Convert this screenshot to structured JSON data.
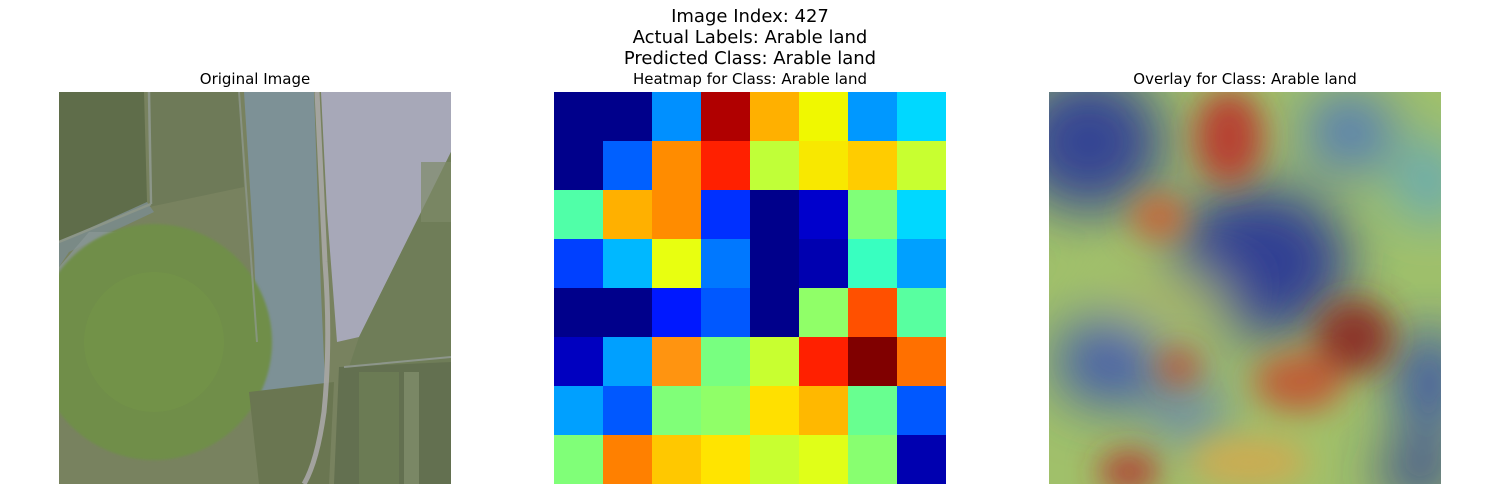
{
  "suptitle": {
    "line1": "Image Index: 427",
    "line2": "Actual Labels: Arable land",
    "line3": "Predicted Class: Arable land"
  },
  "panels": {
    "original_title": "Original Image",
    "heatmap_title": "Heatmap for Class: Arable land",
    "overlay_title": "Overlay for Class: Arable land"
  },
  "heatmap": {
    "colormap": "jet",
    "rows": 8,
    "cols": 8,
    "cell_colors": [
      [
        "#00008b",
        "#00008b",
        "#0090ff",
        "#b00000",
        "#ffb000",
        "#f0f800",
        "#0098ff",
        "#00d8ff"
      ],
      [
        "#00008b",
        "#0060ff",
        "#ff8c00",
        "#ff2000",
        "#c0ff38",
        "#f8e800",
        "#ffcc00",
        "#c8ff30"
      ],
      [
        "#50ffa8",
        "#ffb000",
        "#ff8c00",
        "#0030ff",
        "#00008b",
        "#0000cc",
        "#80ff78",
        "#00d8ff"
      ],
      [
        "#0040ff",
        "#00b8ff",
        "#e8ff10",
        "#0078ff",
        "#00008b",
        "#0000b0",
        "#38ffc0",
        "#00a0ff"
      ],
      [
        "#00008b",
        "#00008b",
        "#0018ff",
        "#0058ff",
        "#00008b",
        "#90ff68",
        "#ff5000",
        "#58ffa0"
      ],
      [
        "#0000c0",
        "#00a0ff",
        "#ff9410",
        "#78ff80",
        "#c8ff30",
        "#ff2000",
        "#800000",
        "#ff7000"
      ],
      [
        "#00a0ff",
        "#0058ff",
        "#80ff78",
        "#90ff68",
        "#ffe000",
        "#ffb800",
        "#68ff90",
        "#0058ff"
      ],
      [
        "#80ff78",
        "#ff8000",
        "#ffc800",
        "#ffe400",
        "#c8ff30",
        "#e0ff18",
        "#88ff70",
        "#0000b0"
      ]
    ]
  }
}
